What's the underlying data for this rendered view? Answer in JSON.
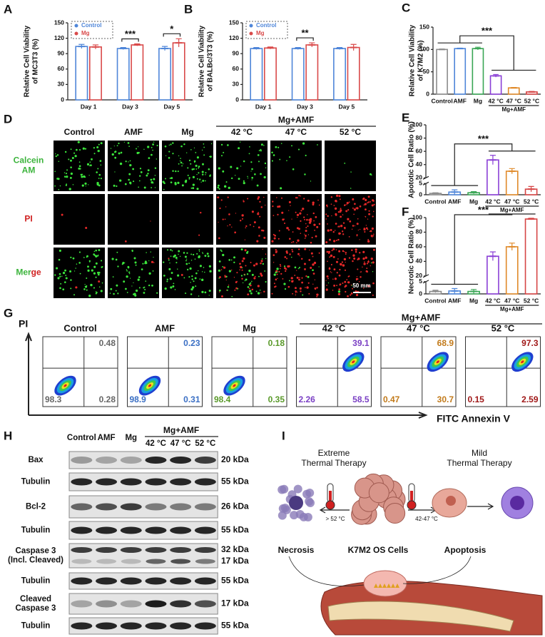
{
  "chart_data": [
    {
      "type": "bar",
      "panel": "A",
      "y_label": [
        "Relative Cell Viability",
        "of MC3T3 (%)"
      ],
      "categories": [
        "Day 1",
        "Day 3",
        "Day 5"
      ],
      "series": [
        {
          "name": "Control",
          "color": "#4f86d9",
          "values": [
            104,
            100,
            100
          ],
          "errors": [
            4,
            2,
            4
          ]
        },
        {
          "name": "Mg",
          "color": "#d94a4a",
          "values": [
            103,
            107,
            111
          ],
          "errors": [
            4,
            2,
            8
          ]
        }
      ],
      "ylim": [
        0,
        150
      ],
      "yticks": [
        0,
        30,
        60,
        90,
        120,
        150
      ],
      "legend": "upper left",
      "significance": [
        null,
        "***",
        "*"
      ]
    },
    {
      "type": "bar",
      "panel": "B",
      "y_label": [
        "Relative Cell Viability",
        "of BALBc/3T3 (%)"
      ],
      "categories": [
        "Day 1",
        "Day 3",
        "Day 5"
      ],
      "series": [
        {
          "name": "Control",
          "color": "#4f86d9",
          "values": [
            100,
            100,
            100
          ],
          "errors": [
            2,
            2,
            2
          ]
        },
        {
          "name": "Mg",
          "color": "#d94a4a",
          "values": [
            101,
            107,
            102
          ],
          "errors": [
            2,
            4,
            6
          ]
        }
      ],
      "ylim": [
        0,
        150
      ],
      "yticks": [
        0,
        30,
        60,
        90,
        120,
        150
      ],
      "legend": "upper left",
      "significance": [
        null,
        "**",
        null
      ]
    },
    {
      "type": "bar",
      "panel": "C",
      "y_label": [
        "Relative Cell Viability",
        "of K7M2 (%)"
      ],
      "categories": [
        "Control",
        "AMF",
        "Mg",
        "42 °C",
        "47 °C",
        "52 °C"
      ],
      "group_label": "Mg+AMF",
      "values": [
        100,
        102,
        102,
        41,
        14,
        5
      ],
      "errors": [
        1,
        1,
        3,
        3,
        1,
        1
      ],
      "colors": [
        "#8c8c8c",
        "#4f86d9",
        "#3aa655",
        "#8a3fd6",
        "#e08a2a",
        "#d64545"
      ],
      "ylim": [
        0,
        150
      ],
      "yticks": [
        0,
        50,
        100,
        150
      ],
      "annotation": "***"
    },
    {
      "type": "bar",
      "panel": "E",
      "y_label": [
        "Apototic Cell Ratio (%)"
      ],
      "categories": [
        "Control",
        "AMF",
        "Mg",
        "42 °C",
        "47 °C",
        "52 °C"
      ],
      "group_label": "Mg+AMF",
      "values": [
        0.6,
        1.2,
        0.9,
        47,
        30,
        2.5
      ],
      "errors": [
        0.3,
        1,
        0.5,
        7,
        4,
        1.2
      ],
      "colors": [
        "#8c8c8c",
        "#4f86d9",
        "#3aa655",
        "#8a3fd6",
        "#e08a2a",
        "#d64545"
      ],
      "ylim": [
        0,
        100
      ],
      "yticks": [
        0,
        5,
        20,
        40,
        60,
        80,
        100
      ],
      "axis_break": [
        5,
        20
      ],
      "annotation": "***"
    },
    {
      "type": "bar",
      "panel": "F",
      "y_label": [
        "Necrotic Cell Ratio (%)"
      ],
      "categories": [
        "Control",
        "AMF",
        "Mg",
        "42 °C",
        "47 °C",
        "52 °C"
      ],
      "group_label": "Mg+AMF",
      "values": [
        1,
        1.2,
        1,
        47,
        60,
        98
      ],
      "errors": [
        0.5,
        1,
        0.8,
        6,
        5,
        1
      ],
      "colors": [
        "#8c8c8c",
        "#4f86d9",
        "#3aa655",
        "#8a3fd6",
        "#e08a2a",
        "#d64545"
      ],
      "ylim": [
        0,
        100
      ],
      "yticks": [
        0,
        5,
        20,
        40,
        60,
        80,
        100
      ],
      "axis_break": [
        5,
        20
      ],
      "annotation": "***"
    }
  ],
  "panel_d": {
    "letter": "D",
    "columns": [
      "Control",
      "AMF",
      "Mg",
      "42 °C",
      "47 °C",
      "52 °C"
    ],
    "group": "Mg+AMF",
    "rows": [
      [
        "Calcein",
        "AM"
      ],
      [
        "PI"
      ],
      [
        "Merge"
      ]
    ],
    "scale": "50 mm"
  },
  "panel_g": {
    "letter": "G",
    "axis_y": "PI",
    "axis_x": "FITC Annexin V",
    "group": "Mg+AMF",
    "labels": [
      "Control",
      "AMF",
      "Mg",
      "42 °C",
      "47 °C",
      "52 °C"
    ],
    "colors": [
      "#666666",
      "#3a6fc4",
      "#5a9a2a",
      "#7a3fc4",
      "#c27a1a",
      "#a01818"
    ],
    "quadrants": [
      {
        "ur": 0.48,
        "ll": 98.3,
        "lr": 0.28
      },
      {
        "ur": 0.23,
        "ll": 98.9,
        "lr": 0.31
      },
      {
        "ur": 0.18,
        "ll": 98.4,
        "lr": 0.35
      },
      {
        "ur": 39.1,
        "ll": 2.26,
        "lr": 58.5
      },
      {
        "ur": 68.9,
        "ll": 0.47,
        "lr": 30.7
      },
      {
        "ur": 97.3,
        "ll": 0.15,
        "lr": 2.59
      }
    ]
  },
  "panel_h": {
    "letter": "H",
    "lanes": [
      "Control",
      "AMF",
      "Mg",
      "42 °C",
      "47 °C",
      "52 °C"
    ],
    "group": "Mg+AMF",
    "rows": [
      {
        "label": [
          "Bax"
        ],
        "kda": [
          "20 kDa"
        ]
      },
      {
        "label": [
          "Tubulin"
        ],
        "kda": [
          "55 kDa"
        ]
      },
      {
        "label": [
          "Bcl-2"
        ],
        "kda": [
          "26 kDa"
        ]
      },
      {
        "label": [
          "Tubulin"
        ],
        "kda": [
          "55 kDa"
        ]
      },
      {
        "label": [
          "Caspase 3",
          "(Incl. Cleaved)"
        ],
        "kda": [
          "32 kDa",
          "17 kDa"
        ]
      },
      {
        "label": [
          "Tubulin"
        ],
        "kda": [
          "55 kDa"
        ]
      },
      {
        "label": [
          "Cleaved",
          "Caspase 3"
        ],
        "kda": [
          "17 kDa"
        ]
      },
      {
        "label": [
          "Tubulin"
        ],
        "kda": [
          "55 kDa"
        ]
      }
    ]
  },
  "panel_i": {
    "letter": "I",
    "extreme": [
      "Extreme",
      "Thermal Therapy"
    ],
    "mild": [
      "Mild",
      "Thermal Therapy"
    ],
    "high_temp": "> 52 °C",
    "mild_temp": "42-47 °C",
    "necrosis": "Necrosis",
    "cells": "K7M2 OS Cells",
    "apoptosis": "Apoptosis"
  }
}
